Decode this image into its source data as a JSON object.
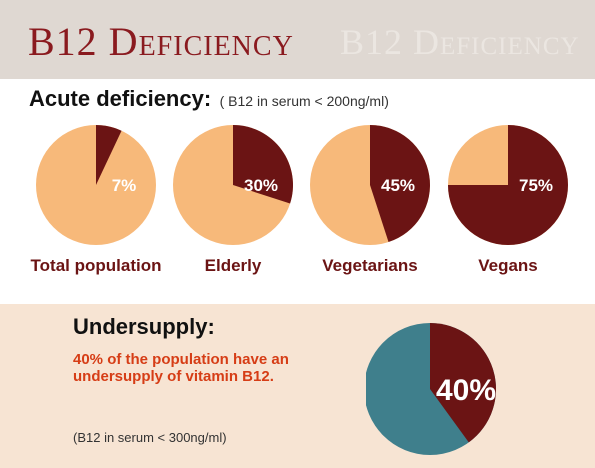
{
  "header": {
    "title": "B12 Deficiency",
    "background_color": "#dfd8d2",
    "title_color": "#8a1a1f"
  },
  "acute": {
    "heading": "Acute deficiency:",
    "subtext": "( B12 in serum < 200ng/ml)"
  },
  "undersupply": {
    "heading": "Undersupply:",
    "description": "40% of the population have an undersupply of vitamin B12.",
    "note": "(B12 in serum < 300ng/ml)",
    "panel_color": "#f7e4d3"
  },
  "chart_data": [
    {
      "type": "pie",
      "title": "",
      "slices": [
        {
          "label": "Total population",
          "value": 7,
          "value_label": "7%"
        },
        {
          "label": "Elderly",
          "value": 30,
          "value_label": "30%"
        },
        {
          "label": "Vegetarians",
          "value": 45,
          "value_label": "45%"
        },
        {
          "label": "Vegans",
          "value": 75,
          "value_label": "75%"
        }
      ],
      "colors": {
        "deficient": "#6b1414",
        "rest": "#f7b97a"
      }
    },
    {
      "type": "pie",
      "title": "",
      "slices": [
        {
          "label": "Undersupply",
          "value": 40,
          "value_label": "40%"
        }
      ],
      "colors": {
        "deficient": "#6b1414",
        "rest": "#3f7f8c"
      }
    }
  ]
}
